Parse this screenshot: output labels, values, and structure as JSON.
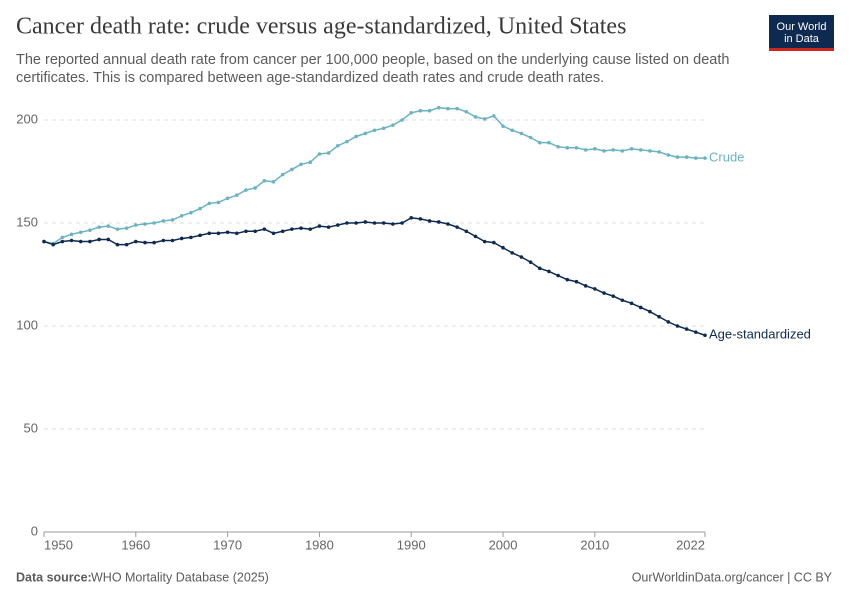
{
  "header": {
    "logo_line1": "Our World",
    "logo_line2": "in Data"
  },
  "footer": {
    "source_label": "Data source:",
    "source": "WHO Mortality Database (2025)",
    "url": "OurWorldinData.org/cancer | CC BY"
  },
  "chart_data": {
    "type": "line",
    "title": "Cancer death rate: crude versus age-standardized, United States",
    "subtitle": [
      "The reported annual death rate from cancer per 100,000 people, based on the underlying cause listed on death",
      "certificates. This is compared between age-standardized death rates and crude death rates."
    ],
    "x": [
      1950,
      1951,
      1952,
      1953,
      1954,
      1955,
      1956,
      1957,
      1958,
      1959,
      1960,
      1961,
      1962,
      1963,
      1964,
      1965,
      1966,
      1967,
      1968,
      1969,
      1970,
      1971,
      1972,
      1973,
      1974,
      1975,
      1976,
      1977,
      1978,
      1979,
      1980,
      1981,
      1982,
      1983,
      1984,
      1985,
      1986,
      1987,
      1988,
      1989,
      1990,
      1991,
      1992,
      1993,
      1994,
      1995,
      1996,
      1997,
      1998,
      1999,
      2000,
      2001,
      2002,
      2003,
      2004,
      2005,
      2006,
      2007,
      2008,
      2009,
      2010,
      2011,
      2012,
      2013,
      2014,
      2015,
      2016,
      2017,
      2018,
      2019,
      2020,
      2021,
      2022
    ],
    "series": [
      {
        "name": "Crude",
        "color": "#6bb3c0",
        "values": [
          141,
          140,
          143,
          144.5,
          145.5,
          146.5,
          148,
          148.5,
          147,
          147.5,
          149,
          149.5,
          150,
          151,
          151.5,
          153.5,
          155,
          157,
          159.5,
          160,
          162,
          163.5,
          166,
          167,
          170.5,
          170,
          173.5,
          176,
          178.5,
          179.5,
          183.5,
          184,
          187.5,
          189.5,
          192,
          193.5,
          195,
          196,
          197.5,
          200,
          203.5,
          204.5,
          204.5,
          206,
          205.5,
          205.5,
          204,
          201.5,
          200.5,
          202,
          197,
          195,
          193.5,
          191.5,
          189,
          189,
          187,
          186.5,
          186.5,
          185.5,
          186,
          185,
          185.5,
          185,
          186,
          185.5,
          185,
          184.5,
          183,
          182,
          182,
          181.5,
          181.5
        ]
      },
      {
        "name": "Age-standardized",
        "color": "#0e2a50",
        "values": [
          141,
          139.5,
          141,
          141.5,
          141,
          141,
          142,
          142,
          139.5,
          139.5,
          141,
          140.5,
          140.5,
          141.5,
          141.5,
          142.5,
          143,
          144,
          145,
          145,
          145.5,
          145,
          146,
          146,
          147,
          145,
          146,
          147,
          147.5,
          147,
          148.5,
          148,
          149,
          150,
          150,
          150.5,
          150,
          150,
          149.5,
          150,
          152.5,
          152,
          151,
          150.5,
          149.5,
          148,
          146,
          143.5,
          141,
          140.5,
          138,
          135.5,
          133.5,
          131,
          128,
          126.5,
          124.5,
          122.5,
          121.5,
          119.5,
          118,
          116,
          114.5,
          112.5,
          111,
          109,
          107,
          104.5,
          102,
          100,
          98.5,
          97,
          95.5
        ]
      }
    ],
    "xlim": [
      1950,
      2022
    ],
    "xticks": [
      1950,
      1960,
      1970,
      1980,
      1990,
      2000,
      2010,
      2022
    ],
    "ylim": [
      0,
      200
    ],
    "yticks": [
      0,
      50,
      100,
      150,
      200
    ],
    "grid": true
  }
}
